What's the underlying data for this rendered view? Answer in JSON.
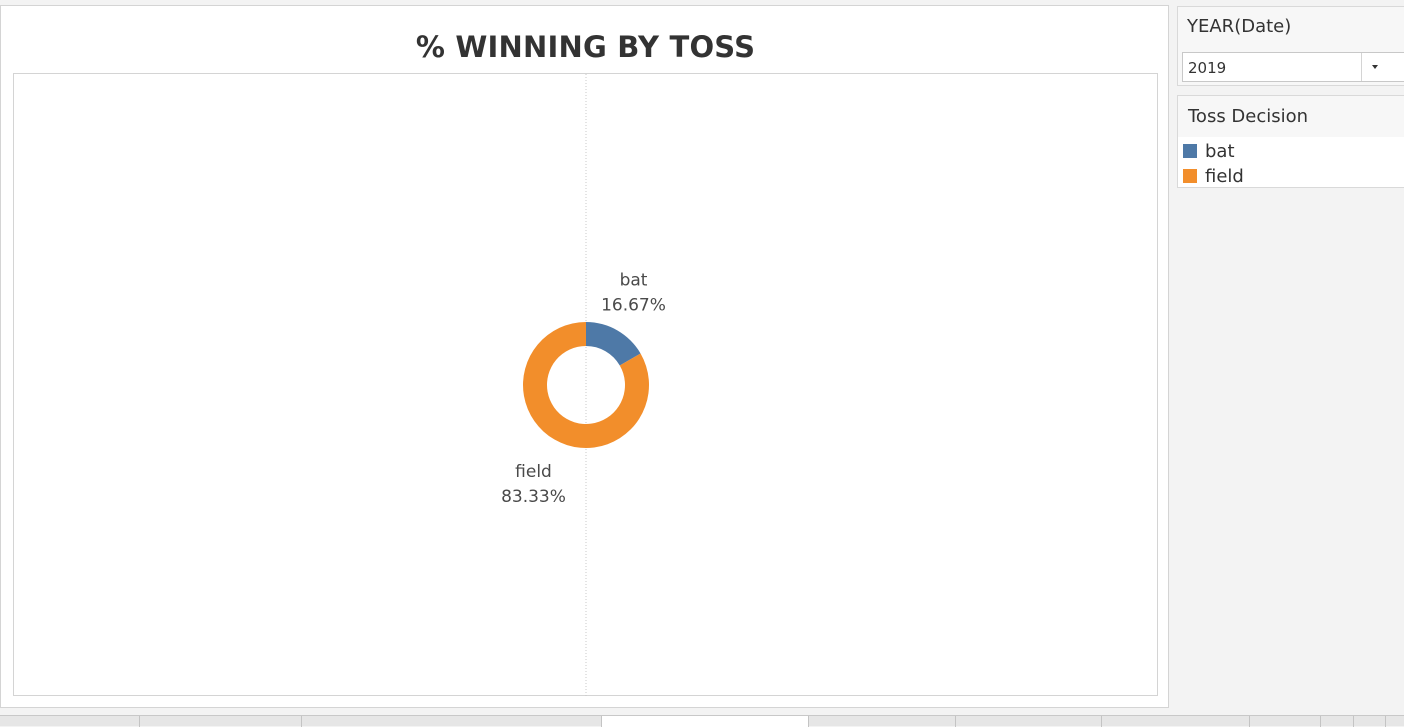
{
  "filter": {
    "title": "YEAR(Date)",
    "selected": "2019"
  },
  "legend": {
    "title": "Toss Decision",
    "items": [
      {
        "label": "bat",
        "color": "#4e79a7"
      },
      {
        "label": "field",
        "color": "#f28e2b"
      }
    ]
  },
  "chart_data": {
    "type": "pie",
    "subtype": "donut",
    "title": "% WINNING BY TOSS",
    "categories": [
      "bat",
      "field"
    ],
    "values": [
      16.67,
      83.33
    ],
    "value_labels": [
      "16.67%",
      "83.33%"
    ],
    "colors": [
      "#4e79a7",
      "#f28e2b"
    ],
    "legend": "right"
  }
}
